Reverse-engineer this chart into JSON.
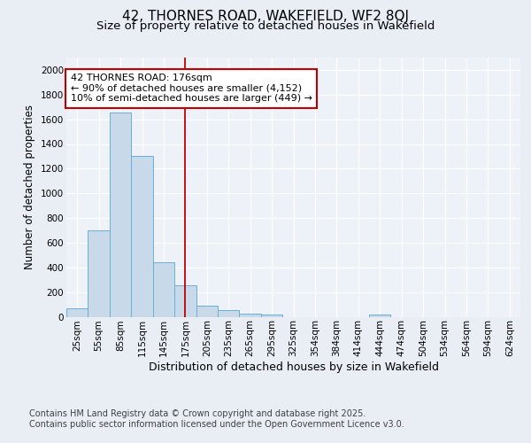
{
  "title1": "42, THORNES ROAD, WAKEFIELD, WF2 8QJ",
  "title2": "Size of property relative to detached houses in Wakefield",
  "xlabel": "Distribution of detached houses by size in Wakefield",
  "ylabel": "Number of detached properties",
  "categories": [
    "25sqm",
    "55sqm",
    "85sqm",
    "115sqm",
    "145sqm",
    "175sqm",
    "205sqm",
    "235sqm",
    "265sqm",
    "295sqm",
    "325sqm",
    "354sqm",
    "384sqm",
    "414sqm",
    "444sqm",
    "474sqm",
    "504sqm",
    "534sqm",
    "564sqm",
    "594sqm",
    "624sqm"
  ],
  "values": [
    70,
    700,
    1655,
    1305,
    440,
    255,
    90,
    55,
    25,
    18,
    0,
    0,
    0,
    0,
    15,
    0,
    0,
    0,
    0,
    0,
    0
  ],
  "bar_color": "#C8D9EA",
  "bar_edge_color": "#6BAED6",
  "highlight_line_color": "#C00000",
  "annotation_text": "42 THORNES ROAD: 176sqm\n← 90% of detached houses are smaller (4,152)\n10% of semi-detached houses are larger (449) →",
  "annotation_box_color": "#C00000",
  "ylim": [
    0,
    2100
  ],
  "yticks": [
    0,
    200,
    400,
    600,
    800,
    1000,
    1200,
    1400,
    1600,
    1800,
    2000
  ],
  "background_color": "#E8EEF4",
  "plot_bg_color": "#EDF2F8",
  "footer": "Contains HM Land Registry data © Crown copyright and database right 2025.\nContains public sector information licensed under the Open Government Licence v3.0.",
  "title1_fontsize": 11,
  "title2_fontsize": 9.5,
  "xlabel_fontsize": 9,
  "ylabel_fontsize": 8.5,
  "tick_fontsize": 7.5,
  "footer_fontsize": 7,
  "annot_fontsize": 8
}
